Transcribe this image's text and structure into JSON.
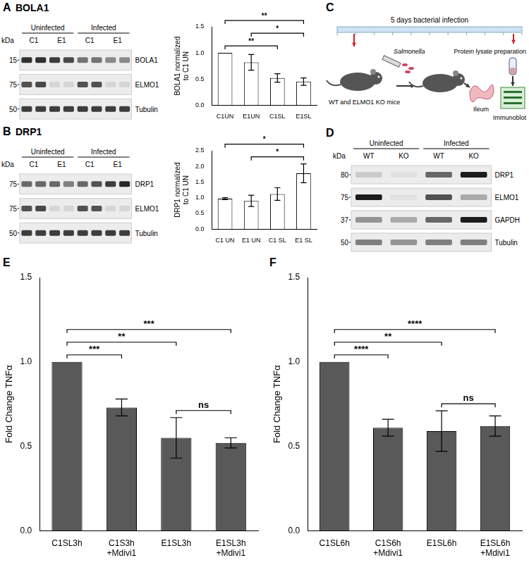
{
  "chart_data": [
    {
      "type": "bar",
      "categories": [
        "C1UN",
        "E1UN",
        "C1SL",
        "E1SL"
      ],
      "values": [
        1.0,
        0.82,
        0.52,
        0.45
      ],
      "error": [
        0,
        0.15,
        0.08,
        0.07
      ],
      "color": "#ffffff",
      "ylabel": "BOLA1 normalized to C1 UN",
      "ylim": [
        0,
        1.5
      ],
      "yticks": [
        {
          "value": 0,
          "label": "0.0"
        },
        {
          "value": 0.5,
          "label": "0.5"
        },
        {
          "value": 1,
          "label": "1.0"
        },
        {
          "value": 1.5,
          "label": "1.5"
        }
      ],
      "grid": false,
      "significance": [
        {
          "from": 0,
          "to": 2,
          "label": "**"
        },
        {
          "from": 0,
          "to": 3,
          "label": "**"
        },
        {
          "from": 1,
          "to": 3,
          "label": "*"
        }
      ]
    },
    {
      "type": "bar",
      "categories": [
        "C1 UN",
        "E1 UN",
        "C1 SL",
        "E1 SL"
      ],
      "values": [
        0.97,
        0.9,
        1.12,
        1.78
      ],
      "error": [
        0.03,
        0.18,
        0.2,
        0.3
      ],
      "color": "#ffffff",
      "ylabel": "DRP1 normalized to C1 UN",
      "ylim": [
        0,
        2.5
      ],
      "yticks": [
        {
          "value": 0,
          "label": "0.0"
        },
        {
          "value": 0.5,
          "label": "0.5"
        },
        {
          "value": 1,
          "label": "1.0"
        },
        {
          "value": 1.5,
          "label": "1.5"
        },
        {
          "value": 2,
          "label": "2.0"
        },
        {
          "value": 2.5,
          "label": "2.5"
        }
      ],
      "grid": false,
      "significance": [
        {
          "from": 0,
          "to": 3,
          "label": "*"
        },
        {
          "from": 1,
          "to": 3,
          "label": "*"
        }
      ]
    },
    {
      "type": "bar",
      "panel": "E",
      "categories": [
        "C1SL3h",
        "C1S3h+Mdivi1",
        "E1SL3h",
        "E1SL3h+Mdivi1"
      ],
      "values": [
        1.0,
        0.73,
        0.55,
        0.52
      ],
      "error": [
        0,
        0.05,
        0.12,
        0.03
      ],
      "color": "#595959",
      "ylabel": "Fold Change TNFα",
      "ylim": [
        0,
        1.5
      ],
      "yticks": [
        {
          "value": 0,
          "label": "0.0"
        },
        {
          "value": 0.5,
          "label": "0.5"
        },
        {
          "value": 1,
          "label": "1.0"
        },
        {
          "value": 1.5,
          "label": "1.5"
        }
      ],
      "grid": false,
      "significance": [
        {
          "from": 0,
          "to": 1,
          "label": "***"
        },
        {
          "from": 0,
          "to": 2,
          "label": "**"
        },
        {
          "from": 0,
          "to": 3,
          "label": "***"
        },
        {
          "from": 2,
          "to": 3,
          "label": "ns"
        }
      ]
    },
    {
      "type": "bar",
      "panel": "F",
      "categories": [
        "C1SL6h",
        "C1S6h+Mdivi1",
        "E1SL6h",
        "E1SL6h+Mdivi1"
      ],
      "values": [
        1.0,
        0.61,
        0.59,
        0.62
      ],
      "error": [
        0,
        0.05,
        0.12,
        0.06
      ],
      "color": "#595959",
      "ylabel": "Fold Change TNFα",
      "ylim": [
        0,
        1.5
      ],
      "yticks": [
        {
          "value": 0,
          "label": "0.0"
        },
        {
          "value": 0.5,
          "label": "0.5"
        },
        {
          "value": 1,
          "label": "1.0"
        },
        {
          "value": 1.5,
          "label": "1.5"
        }
      ],
      "grid": false,
      "significance": [
        {
          "from": 0,
          "to": 1,
          "label": "****"
        },
        {
          "from": 0,
          "to": 2,
          "label": "**"
        },
        {
          "from": 0,
          "to": 3,
          "label": "****"
        },
        {
          "from": 2,
          "to": 3,
          "label": "ns"
        }
      ]
    }
  ],
  "blots": [
    {
      "panel": "A",
      "title": "BOLA1",
      "kda_header": "kDa",
      "groups": [
        "Uninfected",
        "Infected"
      ],
      "lanes": [
        {
          "label": "C1",
          "count": 2
        },
        {
          "label": "E1",
          "count": 2
        },
        {
          "label": "C1",
          "count": 2
        },
        {
          "label": "E1",
          "count": 2
        }
      ],
      "rows": [
        {
          "protein": "BOLA1",
          "kda": 15,
          "bands": [
            0.85,
            0.85,
            0.8,
            0.75,
            0.55,
            0.55,
            0.45,
            0.45
          ]
        },
        {
          "protein": "ELMO1",
          "kda": 75,
          "bands": [
            0.7,
            0.75,
            0.1,
            0.1,
            0.7,
            0.7,
            0.1,
            0.1
          ]
        },
        {
          "protein": "Tubulin",
          "kda": 50,
          "bands": [
            0.8,
            0.8,
            0.8,
            0.8,
            0.8,
            0.8,
            0.8,
            0.8
          ]
        }
      ]
    },
    {
      "panel": "B",
      "title": "DRP1",
      "kda_header": "kDa",
      "groups": [
        "Uninfected",
        "Infected"
      ],
      "lanes": [
        {
          "label": "C1",
          "count": 2
        },
        {
          "label": "E1",
          "count": 2
        },
        {
          "label": "C1",
          "count": 2
        },
        {
          "label": "E1",
          "count": 2
        }
      ],
      "rows": [
        {
          "protein": "DRP1",
          "kda": 75,
          "bands": [
            0.6,
            0.6,
            0.6,
            0.5,
            0.6,
            0.7,
            0.8,
            0.9
          ]
        },
        {
          "protein": "ELMO1",
          "kda": 75,
          "bands": [
            0.7,
            0.75,
            0.1,
            0.1,
            0.7,
            0.7,
            0.1,
            0.1
          ]
        },
        {
          "protein": "Tubulin",
          "kda": 50,
          "bands": [
            0.8,
            0.8,
            0.8,
            0.8,
            0.8,
            0.8,
            0.8,
            0.8
          ]
        }
      ]
    },
    {
      "panel": "D",
      "kda_header": "kDa",
      "groups": [
        "Uninfected",
        "Infected"
      ],
      "lanes": [
        {
          "label": "WT",
          "count": 1
        },
        {
          "label": "KO",
          "count": 1
        },
        {
          "label": "WT",
          "count": 1
        },
        {
          "label": "KO",
          "count": 1
        }
      ],
      "rows": [
        {
          "protein": "DRP1",
          "kda": 80,
          "bands": [
            0.15,
            0.05,
            0.6,
            0.95
          ]
        },
        {
          "protein": "ELMO1",
          "kda": 75,
          "bands": [
            0.95,
            0.05,
            0.7,
            0.3
          ]
        },
        {
          "protein": "GAPDH",
          "kda": 37,
          "bands": [
            0.4,
            0.3,
            0.6,
            0.95
          ]
        },
        {
          "protein": "Tubulin",
          "kda": 50,
          "bands": [
            0.5,
            0.4,
            0.5,
            0.5
          ]
        }
      ]
    }
  ],
  "schematic": {
    "panel": "C",
    "timeline_label": "5 days bacterial infection",
    "bacteria": "Salmonella",
    "mice": "WT and ELMO1 KO mice",
    "tissue": "Ileum",
    "lysate": "Protein lysate preparation",
    "assay": "Immunoblot"
  }
}
